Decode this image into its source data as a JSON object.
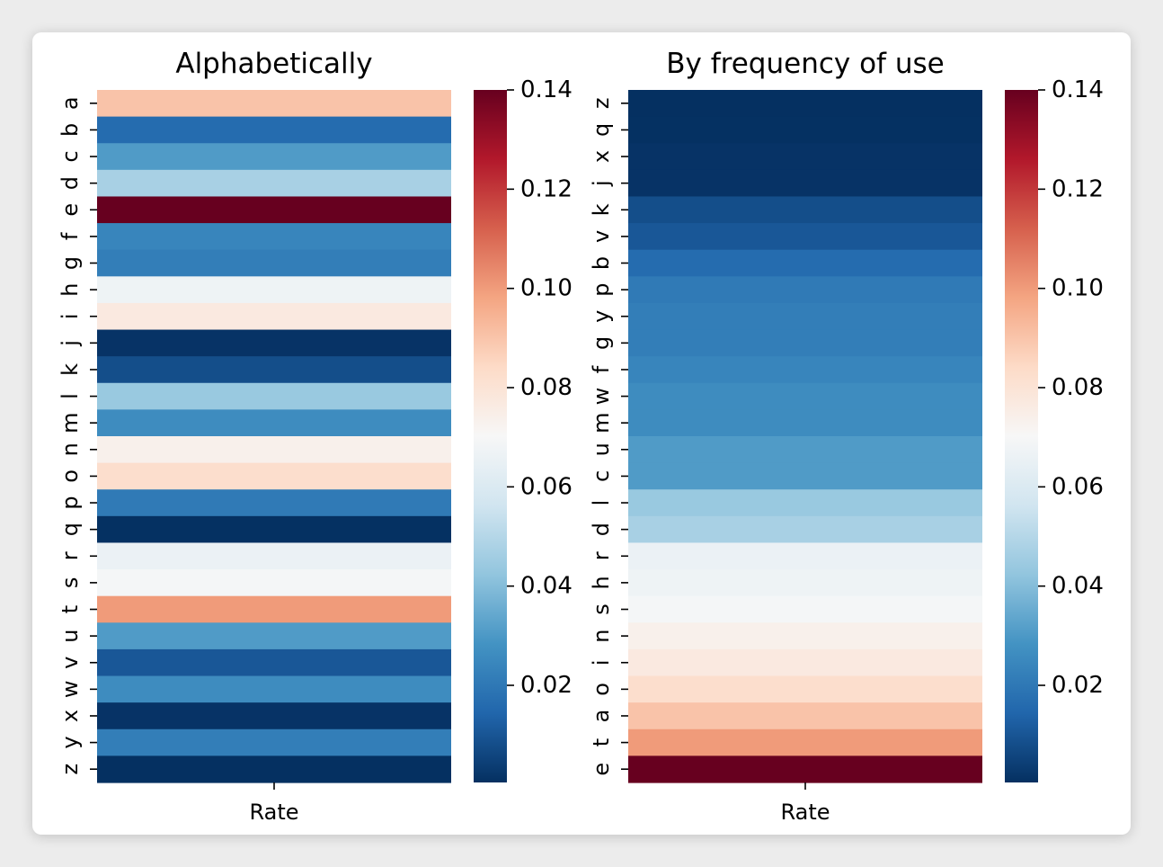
{
  "chart_data": [
    {
      "type": "heatmap",
      "title": "Alphabetically",
      "xlabel": "Rate",
      "x_tick_labels": [],
      "y_tick_labels": [
        "a",
        "b",
        "c",
        "d",
        "e",
        "f",
        "g",
        "h",
        "i",
        "j",
        "k",
        "l",
        "m",
        "n",
        "o",
        "p",
        "q",
        "r",
        "s",
        "t",
        "u",
        "v",
        "w",
        "x",
        "y",
        "z"
      ],
      "values": [
        0.082,
        0.015,
        0.028,
        0.043,
        0.127,
        0.022,
        0.02,
        0.061,
        0.07,
        0.0015,
        0.0077,
        0.04,
        0.024,
        0.067,
        0.075,
        0.019,
        0.00095,
        0.06,
        0.063,
        0.091,
        0.028,
        0.0098,
        0.024,
        0.0015,
        0.02,
        0.00074
      ],
      "colormap": "RdBu_r",
      "color_range": [
        0.00074,
        0.127
      ],
      "colorbar_ticks": [
        0.02,
        0.04,
        0.06,
        0.08,
        0.1,
        0.12,
        0.14
      ],
      "colorbar_tick_labels": [
        "0.02",
        "0.04",
        "0.06",
        "0.08",
        "0.10",
        "0.12",
        "0.14"
      ]
    },
    {
      "type": "heatmap",
      "title": "By frequency of use",
      "xlabel": "Rate",
      "x_tick_labels": [],
      "y_tick_labels": [
        "z",
        "q",
        "x",
        "j",
        "k",
        "v",
        "b",
        "p",
        "y",
        "g",
        "f",
        "w",
        "m",
        "u",
        "c",
        "l",
        "d",
        "r",
        "h",
        "s",
        "n",
        "i",
        "o",
        "a",
        "t",
        "e"
      ],
      "values": [
        0.00074,
        0.00095,
        0.0015,
        0.0015,
        0.0077,
        0.0098,
        0.015,
        0.019,
        0.02,
        0.02,
        0.022,
        0.024,
        0.024,
        0.028,
        0.028,
        0.04,
        0.043,
        0.06,
        0.061,
        0.063,
        0.067,
        0.07,
        0.075,
        0.082,
        0.091,
        0.127
      ],
      "colormap": "RdBu_r",
      "color_range": [
        0.00074,
        0.127
      ],
      "colorbar_ticks": [
        0.02,
        0.04,
        0.06,
        0.08,
        0.1,
        0.12,
        0.14
      ],
      "colorbar_tick_labels": [
        "0.02",
        "0.04",
        "0.06",
        "0.08",
        "0.10",
        "0.12",
        "0.14"
      ]
    }
  ]
}
